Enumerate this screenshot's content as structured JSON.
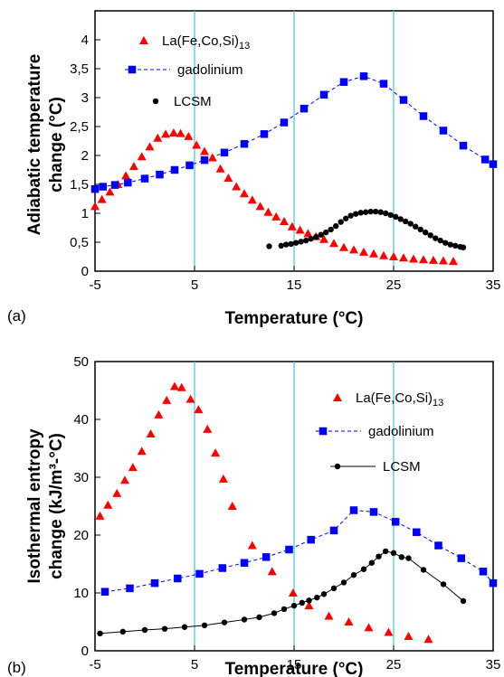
{
  "chart_data": [
    {
      "type": "scatter",
      "panel_label": "(a)",
      "xlabel": "Temperature (°C)",
      "ylabel_line1": "Adiabatic temperature",
      "ylabel_line2": "change (°C)",
      "xlim": [
        -5,
        35
      ],
      "ylim": [
        0,
        4.5
      ],
      "xticks": [
        -5,
        5,
        15,
        25,
        35
      ],
      "xtick_labels": [
        "-5",
        "5",
        "15",
        "25",
        "35"
      ],
      "yticks": [
        0,
        0.5,
        1,
        1.5,
        2,
        2.5,
        3,
        3.5,
        4
      ],
      "ytick_labels": [
        "0",
        "0,5",
        "1",
        "1,5",
        "2",
        "2,5",
        "3",
        "3,5",
        "4"
      ],
      "grid": "vertical lines at x ticks",
      "series": [
        {
          "name": "La(Fe,Co,Si)",
          "name_sub": "13",
          "marker": "triangle",
          "color": "#ff0000",
          "line": false,
          "x": [
            -5,
            -4.3,
            -3.5,
            -2.7,
            -1.9,
            -1.1,
            -0.3,
            0.5,
            1.3,
            2.1,
            2.9,
            3.6,
            4.4,
            5.2,
            6.0,
            6.8,
            7.6,
            8.4,
            9.2,
            10.0,
            10.8,
            11.6,
            12.4,
            13.2,
            14.0,
            14.8,
            15.6,
            16.4,
            17.2,
            18.0,
            19.0,
            20.0,
            21.0,
            22.0,
            23.0,
            24.0,
            25.0,
            26.0,
            27.0,
            28.0,
            29.0,
            30.0,
            31.0
          ],
          "y": [
            1.12,
            1.24,
            1.37,
            1.5,
            1.65,
            1.81,
            1.98,
            2.15,
            2.3,
            2.37,
            2.39,
            2.38,
            2.33,
            2.18,
            2.07,
            1.96,
            1.77,
            1.61,
            1.46,
            1.34,
            1.23,
            1.12,
            1.02,
            0.94,
            0.86,
            0.77,
            0.71,
            0.65,
            0.6,
            0.55,
            0.48,
            0.41,
            0.37,
            0.33,
            0.3,
            0.27,
            0.25,
            0.23,
            0.21,
            0.2,
            0.19,
            0.18,
            0.17
          ]
        },
        {
          "name": "gadolinium",
          "marker": "square",
          "color": "#0000ff",
          "line": "dashed",
          "x": [
            -5,
            -4.2,
            -3,
            -1.7,
            0,
            1.5,
            3,
            4.5,
            6,
            8,
            10,
            12,
            14,
            16,
            18,
            20,
            22,
            24,
            26,
            28,
            30,
            32,
            34.2,
            35
          ],
          "y": [
            1.42,
            1.46,
            1.49,
            1.53,
            1.6,
            1.67,
            1.75,
            1.83,
            1.92,
            2.05,
            2.2,
            2.37,
            2.57,
            2.81,
            3.05,
            3.27,
            3.37,
            3.24,
            2.96,
            2.68,
            2.43,
            2.17,
            1.93,
            1.85
          ]
        },
        {
          "name": "LCSM",
          "marker": "circle",
          "color": "#000000",
          "line": false,
          "x": [
            12.5,
            13.7,
            14.2,
            14.7,
            15.2,
            15.7,
            16.2,
            16.7,
            17.2,
            17.7,
            18.2,
            18.7,
            19.2,
            19.7,
            20.2,
            20.7,
            21.2,
            21.7,
            22.2,
            22.7,
            23.2,
            23.7,
            24.2,
            24.7,
            25.2,
            25.7,
            26.2,
            26.7,
            27.2,
            27.7,
            28.2,
            28.7,
            29.2,
            29.7,
            30.2,
            30.7,
            31.2,
            31.7,
            32.0
          ],
          "y": [
            0.43,
            0.44,
            0.46,
            0.47,
            0.49,
            0.51,
            0.53,
            0.56,
            0.59,
            0.63,
            0.67,
            0.72,
            0.78,
            0.85,
            0.91,
            0.96,
            0.99,
            1.01,
            1.02,
            1.03,
            1.03,
            1.02,
            1.0,
            0.97,
            0.94,
            0.9,
            0.86,
            0.82,
            0.77,
            0.72,
            0.67,
            0.62,
            0.57,
            0.53,
            0.49,
            0.46,
            0.44,
            0.42,
            0.41
          ]
        }
      ]
    },
    {
      "type": "line",
      "panel_label": "(b)",
      "xlabel": "Temperature (°C)",
      "ylabel_line1": "Isothermal entropy",
      "ylabel_line2": "change (kJ/m³-°C)",
      "xlim": [
        -5,
        35
      ],
      "ylim": [
        0,
        50
      ],
      "xticks": [
        -5,
        5,
        15,
        25,
        35
      ],
      "xtick_labels": [
        "-5",
        "5",
        "15",
        "25",
        "35"
      ],
      "yticks": [
        0,
        10,
        20,
        30,
        40,
        50
      ],
      "ytick_labels": [
        "0",
        "10",
        "20",
        "30",
        "40",
        "50"
      ],
      "grid": "vertical lines at x ticks",
      "series": [
        {
          "name": "La(Fe,Co,Si)",
          "name_sub": "13",
          "marker": "triangle",
          "color": "#ff0000",
          "line": false,
          "x": [
            -4.5,
            -3.7,
            -2.8,
            -2,
            -1.2,
            -0.3,
            0.6,
            1.4,
            2.2,
            3.0,
            3.7,
            4.6,
            5.4,
            6.3,
            7.1,
            7.9,
            8.8,
            10.8,
            12.8,
            14.9,
            16.5,
            18.5,
            20.5,
            22.5,
            24.5,
            26.5,
            28.5
          ],
          "y": [
            23.3,
            25.2,
            27.2,
            29.5,
            31.7,
            34.5,
            37.5,
            40.8,
            43.3,
            45.7,
            45.5,
            43.5,
            41.7,
            38.3,
            34.2,
            29.7,
            25,
            18.2,
            13.7,
            10,
            7.8,
            6,
            5,
            4,
            3.2,
            2.5,
            2
          ]
        },
        {
          "name": "gadolinium",
          "marker": "square",
          "color": "#0000ff",
          "line": "dashed",
          "x": [
            -4,
            -1.5,
            1,
            3.3,
            5.5,
            7.8,
            10,
            12.2,
            14.5,
            16.7,
            19,
            21,
            23,
            25.2,
            27.3,
            29.5,
            31.8,
            34,
            35
          ],
          "y": [
            10.2,
            10.8,
            11.7,
            12.5,
            13.3,
            14.3,
            15.2,
            16.2,
            17.5,
            19.2,
            20.8,
            24.3,
            24,
            22.3,
            20.5,
            18.2,
            16,
            13.7,
            11.7
          ]
        },
        {
          "name": "LCSM",
          "marker": "circle",
          "color": "#000000",
          "line": "solid",
          "x": [
            -4.5,
            -2.2,
            0,
            2,
            4,
            6,
            8,
            10,
            11.5,
            13,
            14,
            15,
            15.8,
            16.5,
            17.3,
            18,
            19,
            20,
            21,
            22,
            22.8,
            23.5,
            24.2,
            25,
            25.8,
            26.5,
            28,
            30,
            32
          ],
          "y": [
            3,
            3.3,
            3.6,
            3.8,
            4.1,
            4.4,
            4.9,
            5.4,
            5.8,
            6.5,
            7.2,
            7.8,
            8.3,
            8.7,
            9.2,
            9.8,
            10.8,
            11.8,
            13.1,
            14.1,
            15.2,
            16.3,
            17.2,
            16.9,
            16.2,
            16,
            14,
            11.5,
            8.6
          ]
        }
      ]
    }
  ]
}
